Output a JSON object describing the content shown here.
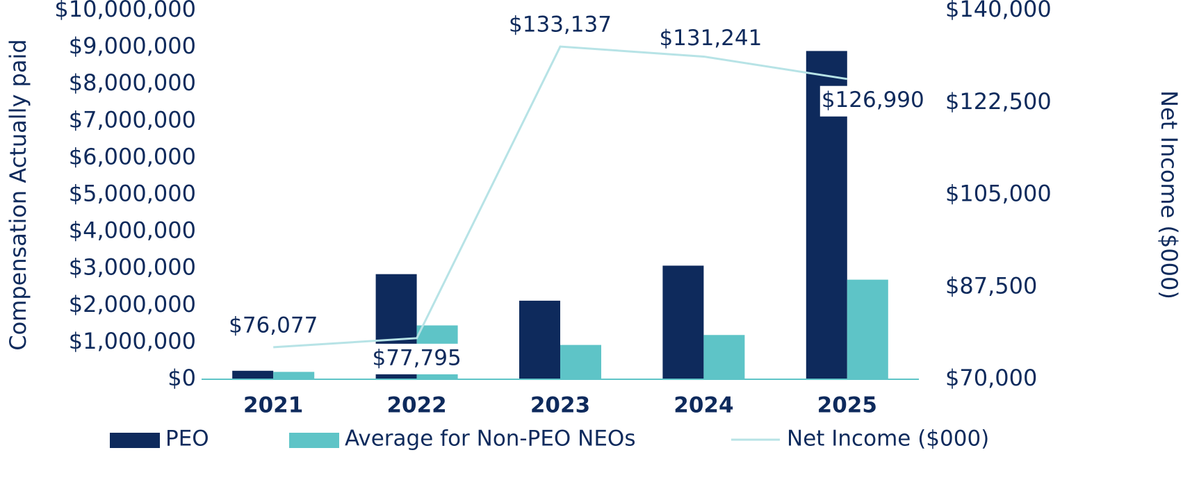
{
  "chart_data": {
    "type": "bar",
    "categories": [
      "2021",
      "2022",
      "2023",
      "2024",
      "2025"
    ],
    "series": [
      {
        "name": "PEO",
        "type": "bar",
        "axis": "left",
        "color": "#0e2a5c",
        "values": [
          230000,
          2850000,
          2130000,
          3080000,
          8900000
        ]
      },
      {
        "name": "Average for Non-PEO NEOs",
        "type": "bar",
        "axis": "left",
        "color": "#5ec4c7",
        "values": [
          200000,
          1460000,
          930000,
          1200000,
          2700000
        ]
      },
      {
        "name": "Net Income ($000)",
        "type": "line",
        "axis": "right",
        "color": "#b7e3e6",
        "values": [
          76077,
          77795,
          133137,
          131241,
          126990
        ],
        "labels": [
          "$76,077",
          "$77,795",
          "$133,137",
          "$131,241",
          "$126,990"
        ]
      }
    ],
    "ylabel": "Compensation Actually paid",
    "y2label": "Net Income ($000)",
    "ylim": [
      0,
      10000000
    ],
    "y2lim": [
      70000,
      140000
    ],
    "yticks": [
      "$0",
      "$1,000,000",
      "$2,000,000",
      "$3,000,000",
      "$4,000,000",
      "$5,000,000",
      "$6,000,000",
      "$7,000,000",
      "$8,000,000",
      "$9,000,000",
      "$10,000,000"
    ],
    "y2ticks": [
      "$70,000",
      "$87,500",
      "$105,000",
      "$122,500",
      "$140,000"
    ],
    "grid": false,
    "legend_position": "bottom"
  }
}
